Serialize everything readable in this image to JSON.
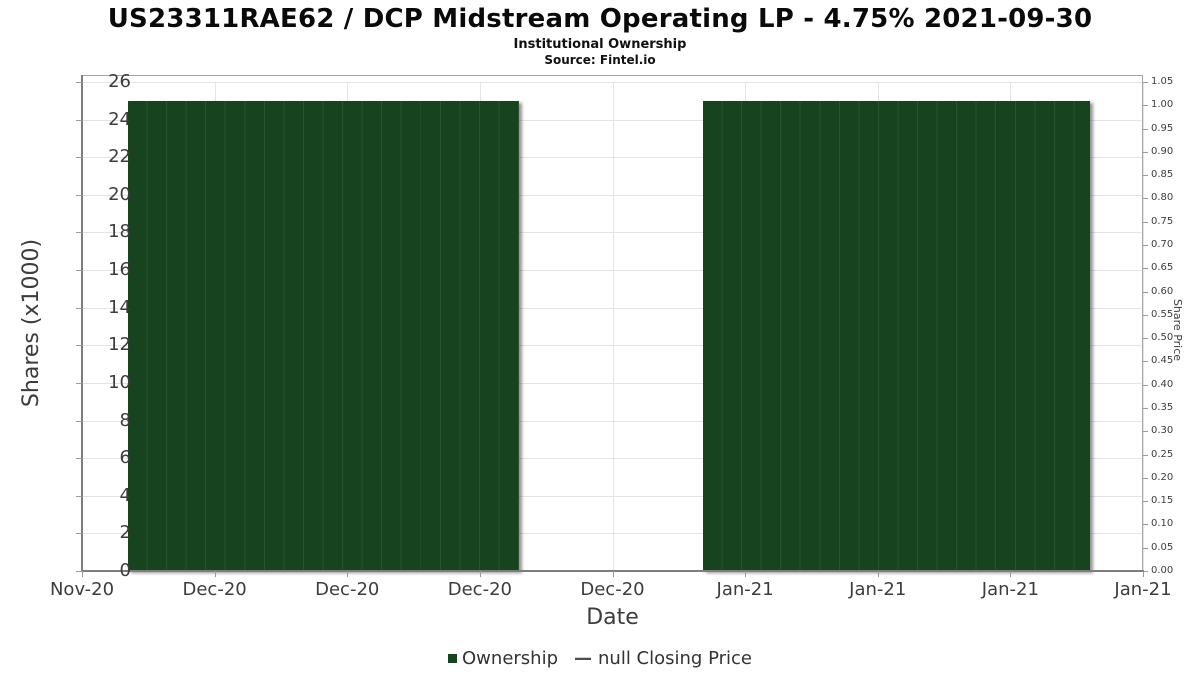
{
  "header": {
    "title": "US23311RAE62 / DCP Midstream Operating LP - 4.75% 2021-09-30",
    "subtitle": "Institutional Ownership",
    "source": "Source: Fintel.io"
  },
  "axes": {
    "left": {
      "label": "Shares (x1000)"
    },
    "right": {
      "label": "Share Price"
    },
    "x": {
      "label": "Date"
    }
  },
  "legend": {
    "items": [
      {
        "label": "Ownership",
        "marker": "square",
        "color": "#17431f"
      },
      {
        "label": "null Closing Price",
        "marker": "dash",
        "color": "#4d4d4d",
        "dash_glyph": "—"
      }
    ]
  },
  "colors": {
    "bar": "#17431f",
    "bar_divider": "#2b5330",
    "grid": "#e4e4e4",
    "frame": "#a6a6a6",
    "spine": "#7d7d7d",
    "text": "#3d3d3d"
  },
  "chart_data": {
    "type": "bar",
    "title": "US23311RAE62 / DCP Midstream Operating LP - 4.75% 2021-09-30",
    "subtitle": "Institutional Ownership",
    "source": "Source: Fintel.io",
    "xlabel": "Date",
    "ylabel": "Shares (x1000)",
    "ylabel_right": "Share Price",
    "x_tick_labels": [
      "Nov-20",
      "Dec-20",
      "Dec-20",
      "Dec-20",
      "Dec-20",
      "Jan-21",
      "Jan-21",
      "Jan-21",
      "Jan-21"
    ],
    "ylim_left": [
      0,
      26
    ],
    "ytick_step_left": 2,
    "ylim_right": [
      0,
      1.05
    ],
    "ytick_step_right": 0.05,
    "grid": true,
    "legend_position": "bottom",
    "series": [
      {
        "name": "Ownership",
        "type": "bar",
        "axis": "left",
        "color": "#17431f",
        "value_units": "shares x1000",
        "segments": [
          {
            "x_frac_start": 0.043,
            "x_frac_end": 0.412,
            "value": 25
          },
          {
            "x_frac_start": 0.585,
            "x_frac_end": 0.95,
            "value": 25
          }
        ]
      },
      {
        "name": "null Closing Price",
        "type": "line",
        "axis": "right",
        "color": "#4d4d4d",
        "values": null
      }
    ]
  }
}
